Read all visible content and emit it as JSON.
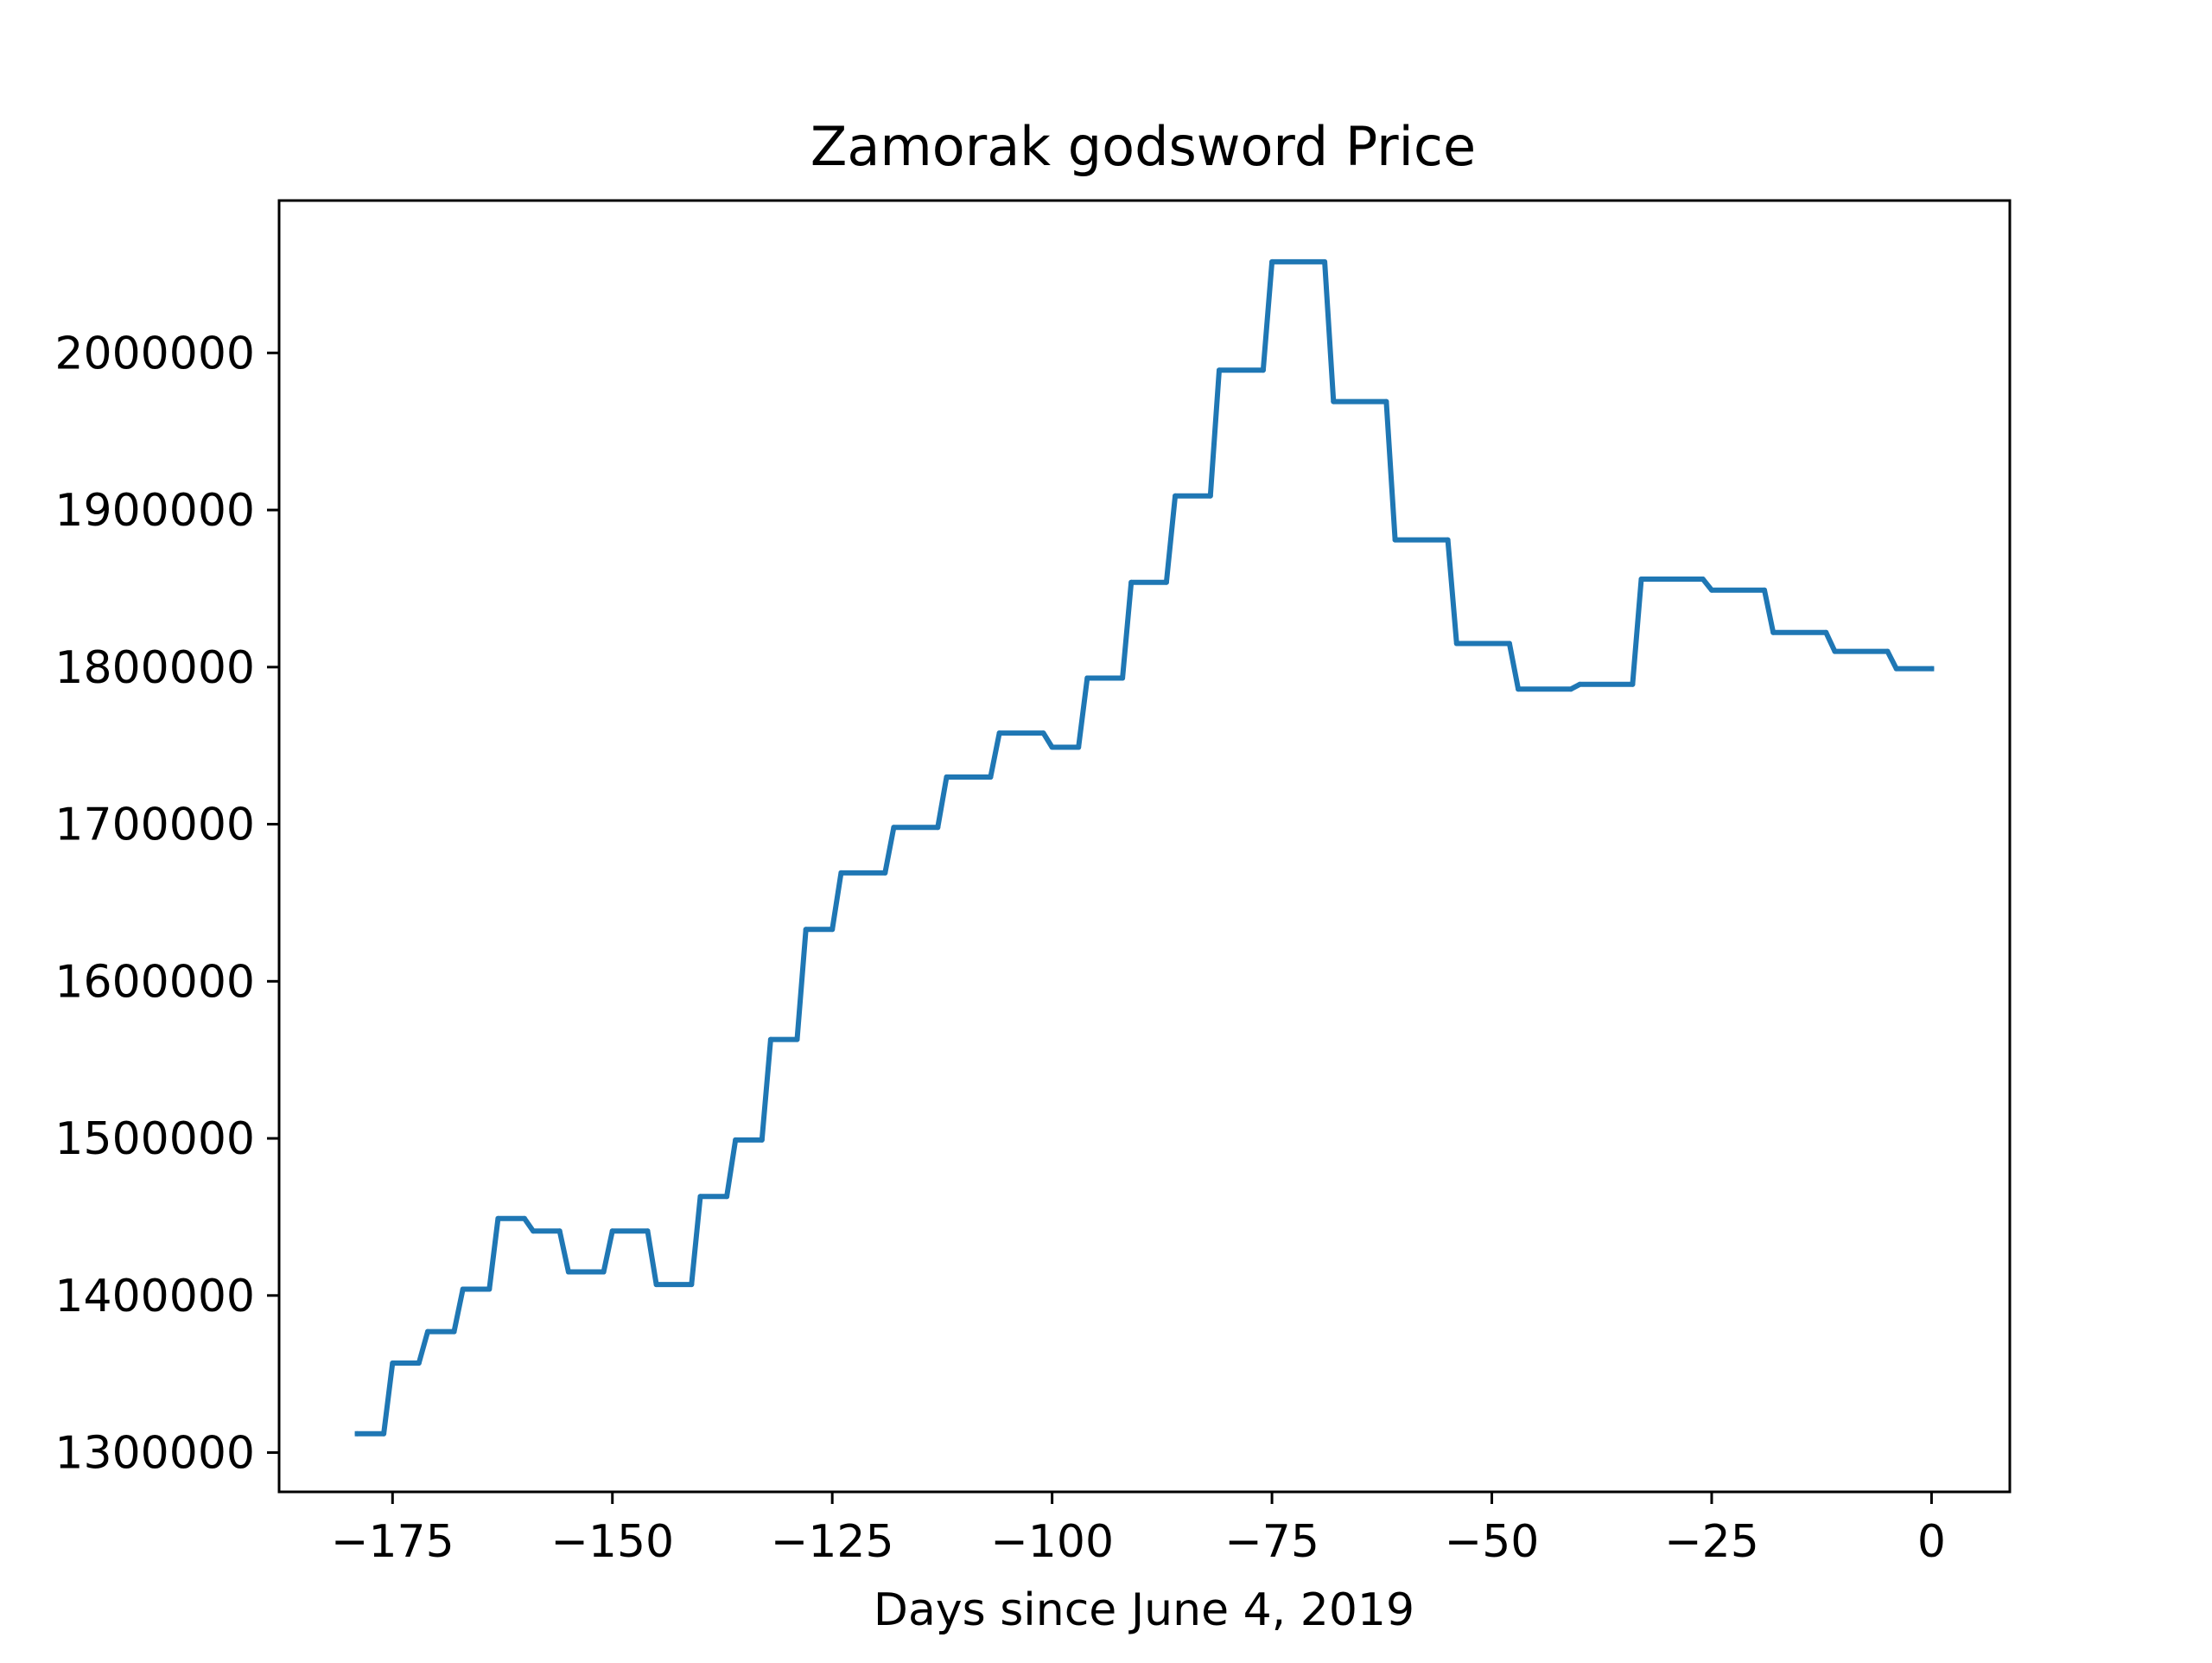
{
  "chart_data": {
    "type": "line",
    "title": "Zamorak godsword Price",
    "xlabel": "Days since June 4, 2019",
    "ylabel": "",
    "xlim": [
      -187.9,
      8.9
    ],
    "ylim": [
      1275000,
      2097000
    ],
    "x_ticks": [
      {
        "value": -175,
        "label": "−175"
      },
      {
        "value": -150,
        "label": "−150"
      },
      {
        "value": -125,
        "label": "−125"
      },
      {
        "value": -100,
        "label": "−100"
      },
      {
        "value": -75,
        "label": "−75"
      },
      {
        "value": -50,
        "label": "−50"
      },
      {
        "value": -25,
        "label": "−25"
      },
      {
        "value": 0,
        "label": "0"
      }
    ],
    "y_ticks": [
      {
        "value": 1300000,
        "label": "1300000"
      },
      {
        "value": 1400000,
        "label": "1400000"
      },
      {
        "value": 1500000,
        "label": "1500000"
      },
      {
        "value": 1600000,
        "label": "1600000"
      },
      {
        "value": 1700000,
        "label": "1700000"
      },
      {
        "value": 1800000,
        "label": "1800000"
      },
      {
        "value": 1900000,
        "label": "1900000"
      },
      {
        "value": 2000000,
        "label": "2000000"
      }
    ],
    "grid": false,
    "series": [
      {
        "color": "#1f77b4",
        "x": [
          -179,
          -176,
          -175,
          -172,
          -171,
          -168,
          -167,
          -164,
          -163,
          -160,
          -159,
          -156,
          -155,
          -151,
          -150,
          -146,
          -145,
          -141,
          -140,
          -137,
          -136,
          -133,
          -132,
          -129,
          -128,
          -125,
          -124,
          -119,
          -118,
          -113,
          -112,
          -107,
          -106,
          -101,
          -100,
          -97,
          -96,
          -92,
          -91,
          -87,
          -86,
          -82,
          -81,
          -76,
          -75,
          -69,
          -68,
          -62,
          -61,
          -55,
          -54,
          -48,
          -47,
          -41,
          -40,
          -34,
          -33,
          -26,
          -25,
          -19,
          -18,
          -12,
          -11,
          -5,
          -4,
          0
        ],
        "y": [
          1312000,
          1312000,
          1357000,
          1357000,
          1377000,
          1377000,
          1404000,
          1404000,
          1449000,
          1449000,
          1441000,
          1441000,
          1415000,
          1415000,
          1441000,
          1441000,
          1407000,
          1407000,
          1463000,
          1463000,
          1499000,
          1499000,
          1563000,
          1563000,
          1633000,
          1633000,
          1669000,
          1669000,
          1698000,
          1698000,
          1730000,
          1730000,
          1758000,
          1758000,
          1749000,
          1749000,
          1793000,
          1793000,
          1854000,
          1854000,
          1909000,
          1909000,
          1989000,
          1989000,
          2058000,
          2058000,
          1969000,
          1969000,
          1881000,
          1881000,
          1815000,
          1815000,
          1786000,
          1786000,
          1789000,
          1789000,
          1856000,
          1856000,
          1849000,
          1849000,
          1822000,
          1822000,
          1810000,
          1810000,
          1799000,
          1799000
        ]
      }
    ]
  }
}
